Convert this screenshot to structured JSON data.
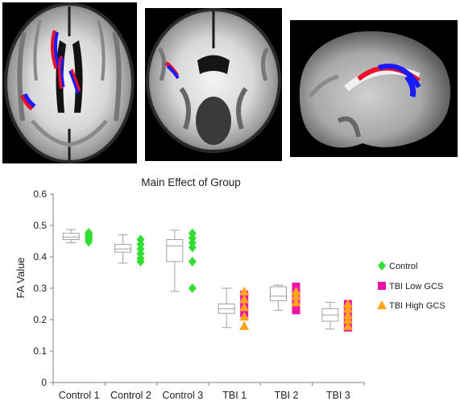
{
  "figure": {
    "panels": [
      {
        "name": "axial",
        "highlight_colors": [
          "#e8102a",
          "#1a1aff"
        ]
      },
      {
        "name": "coronal",
        "highlight_colors": [
          "#e8102a",
          "#1a1aff"
        ]
      },
      {
        "name": "sagittal",
        "highlight_colors": [
          "#e8102a",
          "#1a1aff"
        ]
      }
    ]
  },
  "chart_data": {
    "type": "box",
    "title": "Main Effect of Group",
    "xlabel": "",
    "ylabel": "FA Value",
    "ylim": [
      0,
      0.6
    ],
    "yticks": [
      "0",
      "0.1",
      "0.2",
      "0.3",
      "0.4",
      "0.5",
      "0.6"
    ],
    "ytick_values": [
      0,
      0.1,
      0.2,
      0.3,
      0.4,
      0.5,
      0.6
    ],
    "grid": false,
    "legend_position": "right",
    "categories": [
      "Control 1",
      "Control 2",
      "Control 3",
      "TBI 1",
      "TBI 2",
      "TBI 3"
    ],
    "boxes": [
      {
        "category": "Control 1",
        "min": 0.445,
        "q1": 0.455,
        "median": 0.463,
        "q3": 0.475,
        "max": 0.487
      },
      {
        "category": "Control 2",
        "min": 0.38,
        "q1": 0.415,
        "median": 0.425,
        "q3": 0.44,
        "max": 0.47
      },
      {
        "category": "Control 3",
        "min": 0.29,
        "q1": 0.385,
        "median": 0.435,
        "q3": 0.455,
        "max": 0.485
      },
      {
        "category": "TBI 1",
        "min": 0.175,
        "q1": 0.22,
        "median": 0.235,
        "q3": 0.25,
        "max": 0.3
      },
      {
        "category": "TBI 2",
        "min": 0.23,
        "q1": 0.26,
        "median": 0.275,
        "q3": 0.305,
        "max": 0.31
      },
      {
        "category": "TBI 3",
        "min": 0.17,
        "q1": 0.195,
        "median": 0.215,
        "q3": 0.235,
        "max": 0.255
      }
    ],
    "series": [
      {
        "name": "Control",
        "marker": "diamond",
        "color": "#33dd33",
        "points": [
          {
            "category": "Control 1",
            "values": [
              0.448,
              0.455,
              0.46,
              0.465,
              0.47,
              0.477
            ]
          },
          {
            "category": "Control 2",
            "values": [
              0.385,
              0.395,
              0.41,
              0.425,
              0.44,
              0.455
            ]
          },
          {
            "category": "Control 3",
            "values": [
              0.3,
              0.385,
              0.43,
              0.445,
              0.46,
              0.475
            ]
          }
        ]
      },
      {
        "name": "TBI Low GCS",
        "marker": "square",
        "color": "#ee11aa",
        "points": [
          {
            "category": "TBI 1",
            "values": [
              0.22,
              0.24,
              0.26,
              0.28
            ]
          },
          {
            "category": "TBI 2",
            "values": [
              0.23,
              0.25,
              0.27,
              0.29,
              0.305
            ]
          },
          {
            "category": "TBI 3",
            "values": [
              0.175,
              0.19,
              0.205,
              0.22,
              0.235,
              0.25
            ]
          }
        ]
      },
      {
        "name": "TBI High GCS",
        "marker": "triangle",
        "color": "#ffa41a",
        "points": [
          {
            "category": "TBI 1",
            "values": [
              0.18,
              0.21,
              0.24,
              0.265,
              0.29
            ]
          },
          {
            "category": "TBI 2",
            "values": [
              0.255,
              0.275,
              0.29
            ]
          },
          {
            "category": "TBI 3",
            "values": [
              0.18,
              0.2,
              0.215,
              0.235,
              0.25
            ]
          }
        ]
      }
    ]
  }
}
